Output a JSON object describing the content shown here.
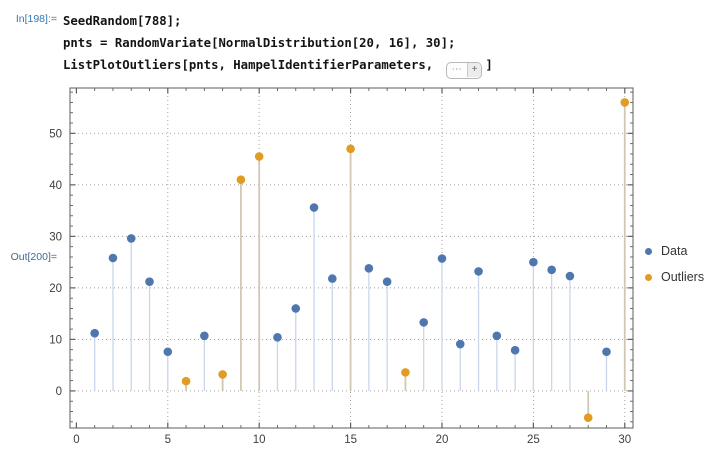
{
  "notebook": {
    "input_label": "In[198]:=",
    "output_label": "Out[200]=",
    "code_lines": [
      "SeedRandom[788];",
      "pnts = RandomVariate[NormalDistribution[20, 16], 30];"
    ],
    "code_line3_prefix": "ListPlotOutliers[pnts, HampelIdentifierParameters, ",
    "iconized_expression": {
      "ellipsis": "⋯",
      "plus": "+"
    },
    "code_line3_suffix": "]"
  },
  "legend": {
    "items": [
      {
        "label": "Data",
        "color": "#4f77ae"
      },
      {
        "label": "Outliers",
        "color": "#e19c24"
      }
    ]
  },
  "chart_data": {
    "type": "scatter",
    "subtype": "stem-plot",
    "title": "",
    "xlabel": "",
    "ylabel": "",
    "xlim": [
      -0.35,
      30.45
    ],
    "ylim": [
      -7.2,
      58.8
    ],
    "x_ticks": [
      0,
      5,
      10,
      15,
      20,
      25,
      30
    ],
    "y_ticks": [
      0,
      10,
      20,
      30,
      40,
      50
    ],
    "x_minor_step": 1,
    "y_minor_step": 2,
    "grid": "dotted",
    "grid_color": "#9a9a9a",
    "frame_color": "#5e5e5e",
    "tick_label_color": "#3f3f3f",
    "legend_position": "right",
    "stem_baseline": 0,
    "series": [
      {
        "name": "Data",
        "color": "#4f77ae",
        "stem_color": "#c9d7eb",
        "stem_width": 1.3,
        "points": [
          [
            1,
            11.2
          ],
          [
            2,
            25.8
          ],
          [
            3,
            29.6
          ],
          [
            4,
            21.2
          ],
          [
            5,
            7.6
          ],
          [
            7,
            10.7
          ],
          [
            11,
            10.4
          ],
          [
            12,
            16.0
          ],
          [
            13,
            35.6
          ],
          [
            14,
            21.8
          ],
          [
            16,
            23.8
          ],
          [
            17,
            21.2
          ],
          [
            19,
            13.3
          ],
          [
            20,
            25.7
          ],
          [
            21,
            9.1
          ],
          [
            22,
            23.2
          ],
          [
            23,
            10.7
          ],
          [
            24,
            7.9
          ],
          [
            25,
            25.0
          ],
          [
            26,
            23.5
          ],
          [
            27,
            22.3
          ],
          [
            29,
            7.6
          ]
        ]
      },
      {
        "name": "Outliers",
        "color": "#e19c24",
        "stem_color": "#d2c7b4",
        "stem_width": 1.8,
        "points": [
          [
            6,
            1.9
          ],
          [
            8,
            3.2
          ],
          [
            9,
            41.0
          ],
          [
            10,
            45.5
          ],
          [
            15,
            47.0
          ],
          [
            18,
            3.6
          ],
          [
            28,
            -5.2
          ],
          [
            30,
            56.0
          ]
        ]
      }
    ]
  }
}
